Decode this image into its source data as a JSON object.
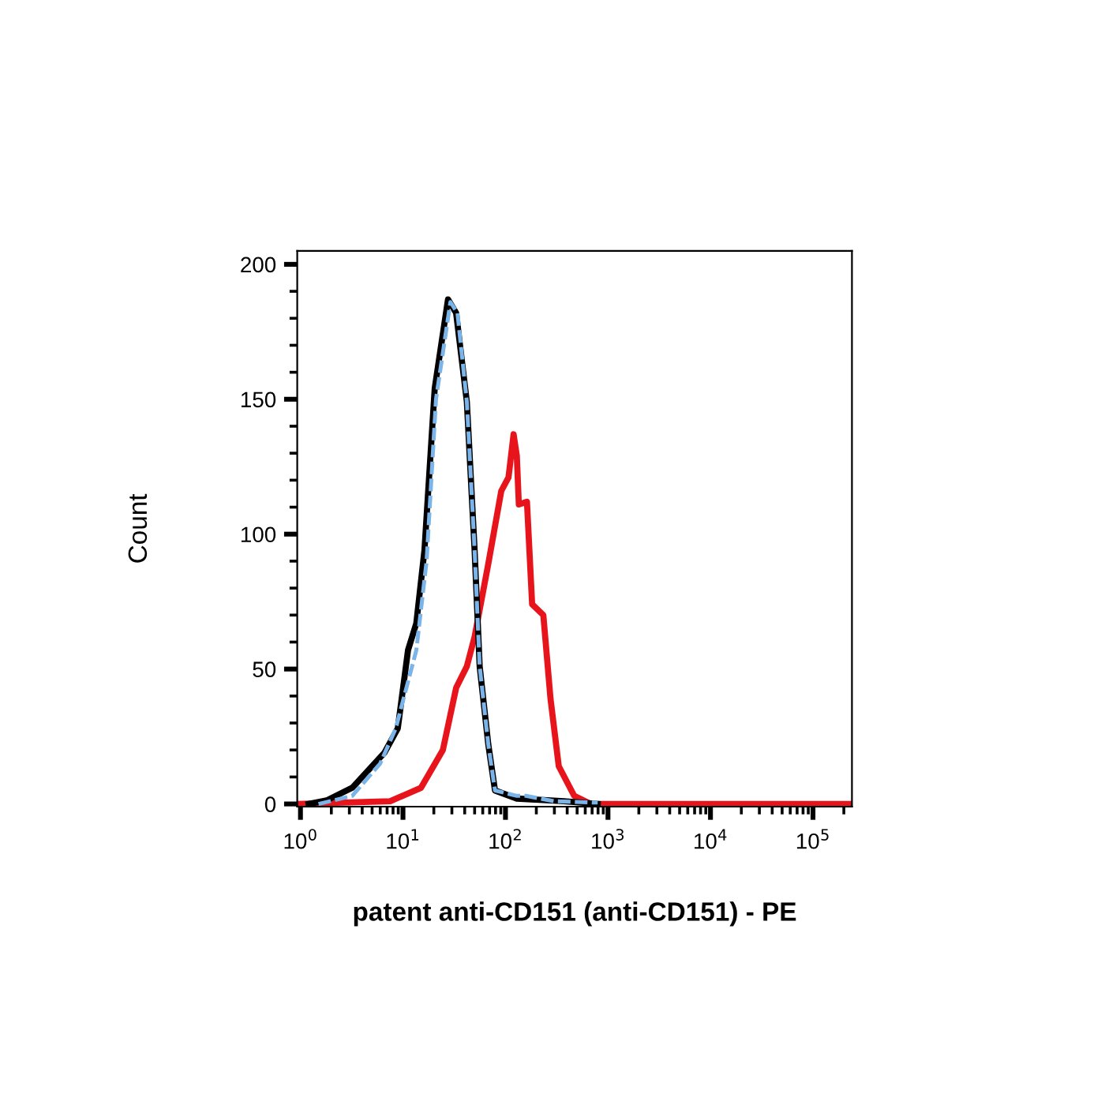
{
  "chart_data": {
    "type": "line",
    "xlabel": "patent anti-CD151 (anti-CD151) - PE",
    "ylabel": "Count",
    "log": "x",
    "xlim": [
      0.93,
      240000
    ],
    "xticks": [
      {
        "value": 1,
        "label": "10$^{0}$"
      },
      {
        "value": 10,
        "label": "10$^{1}$"
      },
      {
        "value": 100,
        "label": "10$^{2}$"
      },
      {
        "value": 1000,
        "label": "10$^{3}$"
      },
      {
        "value": 10000,
        "label": "10$^{4}$"
      },
      {
        "value": 100000,
        "label": "10$^{5}$"
      }
    ],
    "ylim": [
      -1,
      205
    ],
    "yticks": [
      0,
      50,
      100,
      150,
      200,
      {
        "value": 10,
        "label": null
      },
      {
        "value": 20,
        "label": null
      },
      {
        "value": 30,
        "label": null
      },
      {
        "value": 40,
        "label": null
      },
      {
        "value": 60,
        "label": null
      },
      {
        "value": 70,
        "label": null
      },
      {
        "value": 80,
        "label": null
      },
      {
        "value": 90,
        "label": null
      },
      {
        "value": 110,
        "label": null
      },
      {
        "value": 120,
        "label": null
      },
      {
        "value": 130,
        "label": null
      },
      {
        "value": 140,
        "label": null
      },
      {
        "value": 160,
        "label": null
      },
      {
        "value": 170,
        "label": null
      },
      {
        "value": 180,
        "label": null
      },
      {
        "value": 190,
        "label": null
      }
    ],
    "grid": false,
    "series": [
      {
        "color": "#e8141c",
        "line_style": "solid",
        "x": [
          0.93,
          7.5,
          15,
          24.5,
          33,
          42,
          50,
          68,
          91,
          107,
          120,
          129,
          135,
          162,
          182,
          234,
          275,
          331,
          468,
          676,
          900,
          240000
        ],
        "values": [
          0,
          1,
          6,
          20,
          43,
          51,
          62,
          89,
          116,
          121,
          137,
          129,
          111,
          112,
          74,
          70,
          39,
          14,
          3,
          0,
          0,
          0
        ]
      },
      {
        "color": "#000000",
        "line_style": "solid",
        "x": [
          1.2,
          1.8,
          3.2,
          6.6,
          8.9,
          11.2,
          13.5,
          16.2,
          20.4,
          27.5,
          33,
          42,
          50,
          56,
          68,
          79,
          129,
          372,
          794
        ],
        "values": [
          0,
          1.3,
          6,
          19,
          28,
          57,
          67,
          94,
          154,
          187,
          182,
          149,
          94,
          51,
          22,
          5,
          2,
          1,
          0
        ]
      },
      {
        "color": "#7ab4e8",
        "line_style": "dashed",
        "x": [
          1.5,
          3.2,
          6.0,
          8.5,
          13.5,
          17,
          21,
          29,
          34,
          42,
          50,
          56,
          68,
          79,
          129,
          158,
          300,
          794
        ],
        "values": [
          0,
          3,
          15,
          28,
          57,
          90,
          150,
          186,
          182,
          149,
          94,
          51,
          22,
          5,
          3,
          3,
          1,
          0.5
        ]
      }
    ]
  }
}
